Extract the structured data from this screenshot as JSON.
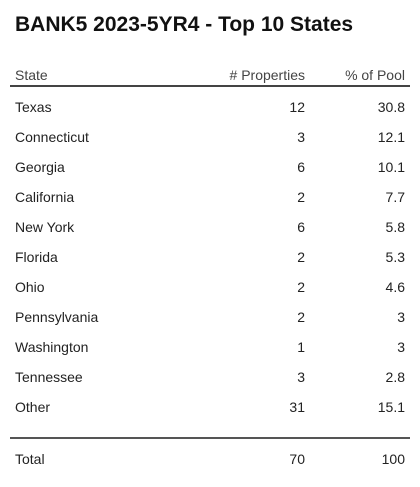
{
  "title": "BANK5 2023-5YR4 - Top 10 States",
  "chart_data": {
    "type": "table",
    "columns": [
      "State",
      "# Properties",
      "% of Pool"
    ],
    "rows": [
      {
        "state": "Texas",
        "properties": "12",
        "pct": "30.8"
      },
      {
        "state": "Connecticut",
        "properties": "3",
        "pct": "12.1"
      },
      {
        "state": "Georgia",
        "properties": "6",
        "pct": "10.1"
      },
      {
        "state": "California",
        "properties": "2",
        "pct": "7.7"
      },
      {
        "state": "New York",
        "properties": "6",
        "pct": "5.8"
      },
      {
        "state": "Florida",
        "properties": "2",
        "pct": "5.3"
      },
      {
        "state": "Ohio",
        "properties": "2",
        "pct": "4.6"
      },
      {
        "state": "Pennsylvania",
        "properties": "2",
        "pct": "3"
      },
      {
        "state": "Washington",
        "properties": "1",
        "pct": "3"
      },
      {
        "state": "Tennessee",
        "properties": "3",
        "pct": "2.8"
      },
      {
        "state": "Other",
        "properties": "31",
        "pct": "15.1"
      }
    ],
    "total": {
      "label": "Total",
      "properties": "70",
      "pct": "100"
    }
  }
}
